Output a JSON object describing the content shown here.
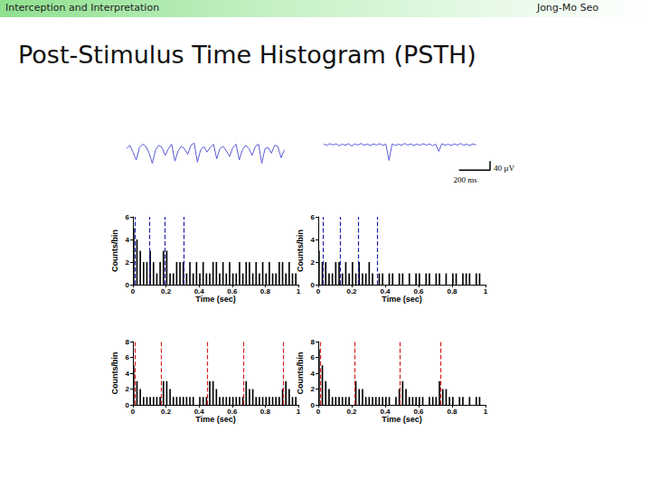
{
  "header": {
    "left": "Interception and Interpretation",
    "right": "Jong-Mo Seo"
  },
  "title": "Post-Stimulus Time Histogram (PSTH)",
  "chart_data": [
    {
      "type": "line",
      "color": "#5b5bd6",
      "tick_labels": false,
      "xlim": [
        0,
        1000
      ],
      "ylim": [
        -120,
        120
      ],
      "x": [
        0,
        20,
        40,
        60,
        80,
        100,
        120,
        140,
        160,
        180,
        200,
        220,
        240,
        260,
        280,
        300,
        320,
        340,
        360,
        380,
        400,
        420,
        440,
        460,
        480,
        500,
        520,
        540,
        560,
        580,
        600,
        620,
        640,
        660,
        680,
        700,
        720,
        740,
        760,
        780,
        800,
        820,
        840,
        860,
        880,
        900,
        920,
        940,
        960,
        980
      ],
      "values": [
        10,
        25,
        -5,
        -40,
        15,
        30,
        20,
        -10,
        -55,
        5,
        25,
        15,
        -20,
        10,
        30,
        -45,
        0,
        20,
        10,
        -15,
        25,
        35,
        -50,
        5,
        20,
        -5,
        15,
        30,
        -35,
        10,
        20,
        0,
        -25,
        15,
        30,
        -40,
        5,
        25,
        10,
        -20,
        20,
        30,
        -55,
        10,
        15,
        -10,
        25,
        20,
        -30,
        5
      ]
    },
    {
      "type": "line",
      "color": "#5b5bd6",
      "tick_labels": false,
      "xlim": [
        0,
        1070
      ],
      "ylim": [
        -120,
        120
      ],
      "x": [
        0,
        20,
        40,
        60,
        80,
        100,
        120,
        140,
        160,
        180,
        200,
        220,
        240,
        260,
        280,
        300,
        320,
        340,
        360,
        380,
        400,
        420,
        440,
        460,
        480,
        500,
        520,
        540,
        560,
        580,
        600,
        620,
        640,
        660,
        680,
        700,
        720,
        740,
        760,
        780,
        800,
        820,
        840,
        860,
        880,
        900,
        920,
        940,
        960,
        980
      ],
      "values": [
        2,
        -3,
        4,
        -2,
        3,
        -5,
        2,
        -3,
        4,
        -6,
        3,
        -2,
        5,
        -3,
        2,
        -4,
        3,
        -2,
        4,
        -3,
        2,
        -70,
        3,
        -4,
        2,
        -3,
        5,
        -2,
        3,
        -4,
        2,
        -3,
        4,
        -2,
        3,
        -5,
        2,
        -30,
        4,
        -3,
        2,
        -4,
        3,
        -2,
        5,
        -3,
        2,
        -4,
        3,
        -2
      ],
      "scale_bar": {
        "x": 200,
        "x_label": "200 ms",
        "y": 40,
        "y_label": "40 µV"
      }
    },
    {
      "type": "histogram",
      "x_label": "Time (sec)",
      "y_label": "Counts/bin",
      "xlim": [
        0,
        1
      ],
      "xticks": [
        0,
        0.2,
        0.4,
        0.6,
        0.8,
        1
      ],
      "ylim": [
        0,
        6
      ],
      "yticks": [
        0,
        2,
        4,
        6
      ],
      "bins": [
        0,
        0.02,
        0.04,
        0.06,
        0.08,
        0.1,
        0.12,
        0.14,
        0.16,
        0.18,
        0.2,
        0.22,
        0.24,
        0.26,
        0.28,
        0.3,
        0.32,
        0.34,
        0.36,
        0.38,
        0.4,
        0.42,
        0.44,
        0.46,
        0.48,
        0.5,
        0.52,
        0.54,
        0.56,
        0.58,
        0.6,
        0.62,
        0.64,
        0.66,
        0.68,
        0.7,
        0.72,
        0.74,
        0.76,
        0.78,
        0.8,
        0.82,
        0.84,
        0.86,
        0.88,
        0.9,
        0.92,
        0.94,
        0.96,
        0.98,
        1
      ],
      "series": [
        {
          "type": "bar",
          "color": "#000000",
          "values": [
            5,
            4,
            3,
            2,
            2,
            3,
            2,
            1,
            2,
            3,
            3,
            1,
            1,
            2,
            2,
            2,
            1,
            2,
            1,
            2,
            1,
            2,
            1,
            1,
            2,
            2,
            1,
            2,
            1,
            2,
            1,
            1,
            2,
            1,
            2,
            2,
            1,
            2,
            1,
            2,
            1,
            2,
            1,
            1,
            2,
            2,
            1,
            2,
            1,
            1
          ]
        },
        {
          "type": "vline",
          "color": "#1f1fa8",
          "line_style": "dashed",
          "x": [
            0.005,
            0.1,
            0.19,
            0.31
          ]
        }
      ]
    },
    {
      "type": "histogram",
      "x_label": "Time (sec)",
      "y_label": "Counts/bin",
      "xlim": [
        0,
        1
      ],
      "xticks": [
        0,
        0.2,
        0.4,
        0.6,
        0.8,
        1
      ],
      "ylim": [
        0,
        6
      ],
      "yticks": [
        0,
        2,
        4,
        6
      ],
      "bins": [
        0,
        0.02,
        0.04,
        0.06,
        0.08,
        0.1,
        0.12,
        0.14,
        0.16,
        0.18,
        0.2,
        0.22,
        0.24,
        0.26,
        0.28,
        0.3,
        0.32,
        0.34,
        0.36,
        0.38,
        0.4,
        0.42,
        0.44,
        0.46,
        0.48,
        0.5,
        0.52,
        0.54,
        0.56,
        0.58,
        0.6,
        0.62,
        0.64,
        0.66,
        0.68,
        0.7,
        0.72,
        0.74,
        0.76,
        0.78,
        0.8,
        0.82,
        0.84,
        0.86,
        0.88,
        0.9,
        0.92,
        0.94,
        0.96,
        0.98,
        1
      ],
      "series": [
        {
          "type": "bar",
          "color": "#000000",
          "values": [
            3,
            2,
            2,
            1,
            1,
            2,
            2,
            1,
            2,
            1,
            2,
            1,
            2,
            1,
            1,
            2,
            1,
            0,
            1,
            1,
            0,
            1,
            1,
            0,
            1,
            1,
            0,
            1,
            0,
            1,
            1,
            0,
            1,
            1,
            0,
            1,
            1,
            0,
            1,
            0,
            1,
            1,
            0,
            1,
            1,
            1,
            0,
            1,
            1,
            0
          ]
        },
        {
          "type": "vline",
          "color": "#1f1fa8",
          "line_style": "dashed",
          "x": [
            0.03,
            0.13,
            0.24,
            0.35
          ]
        }
      ]
    },
    {
      "type": "histogram",
      "x_label": "Time (sec)",
      "y_label": "Counts/bin",
      "xlim": [
        0,
        1
      ],
      "xticks": [
        0,
        0.2,
        0.4,
        0.6,
        0.8,
        1
      ],
      "ylim": [
        0,
        8
      ],
      "yticks": [
        0,
        2,
        4,
        6,
        8
      ],
      "bins": [
        0,
        0.02,
        0.04,
        0.06,
        0.08,
        0.1,
        0.12,
        0.14,
        0.16,
        0.18,
        0.2,
        0.22,
        0.24,
        0.26,
        0.28,
        0.3,
        0.32,
        0.34,
        0.36,
        0.38,
        0.4,
        0.42,
        0.44,
        0.46,
        0.48,
        0.5,
        0.52,
        0.54,
        0.56,
        0.58,
        0.6,
        0.62,
        0.64,
        0.66,
        0.68,
        0.7,
        0.72,
        0.74,
        0.76,
        0.78,
        0.8,
        0.82,
        0.84,
        0.86,
        0.88,
        0.9,
        0.92,
        0.94,
        0.96,
        0.98,
        1
      ],
      "series": [
        {
          "type": "bar",
          "color": "#000000",
          "values": [
            5,
            3,
            2,
            1,
            1,
            1,
            1,
            1,
            1,
            3,
            3,
            2,
            1,
            1,
            1,
            1,
            1,
            1,
            1,
            0,
            1,
            1,
            1,
            3,
            3,
            2,
            1,
            1,
            1,
            1,
            1,
            1,
            1,
            1,
            3,
            2,
            2,
            1,
            1,
            1,
            1,
            1,
            1,
            1,
            1,
            2,
            3,
            2,
            1,
            1
          ]
        },
        {
          "type": "vline",
          "color": "#d42020",
          "line_style": "dashed",
          "x": [
            0.005,
            0.175,
            0.45,
            0.665,
            0.905
          ]
        }
      ]
    },
    {
      "type": "histogram",
      "x_label": "Time (sec)",
      "y_label": "Counts/bin",
      "xlim": [
        0,
        1
      ],
      "xticks": [
        0,
        0.2,
        0.4,
        0.6,
        0.8,
        1
      ],
      "ylim": [
        0,
        8
      ],
      "yticks": [
        0,
        2,
        4,
        6,
        8
      ],
      "bins": [
        0,
        0.02,
        0.04,
        0.06,
        0.08,
        0.1,
        0.12,
        0.14,
        0.16,
        0.18,
        0.2,
        0.22,
        0.24,
        0.26,
        0.28,
        0.3,
        0.32,
        0.34,
        0.36,
        0.38,
        0.4,
        0.42,
        0.44,
        0.46,
        0.48,
        0.5,
        0.52,
        0.54,
        0.56,
        0.58,
        0.6,
        0.62,
        0.64,
        0.66,
        0.68,
        0.7,
        0.72,
        0.74,
        0.76,
        0.78,
        0.8,
        0.82,
        0.84,
        0.86,
        0.88,
        0.9,
        0.92,
        0.94,
        0.96,
        0.98,
        1
      ],
      "series": [
        {
          "type": "bar",
          "color": "#000000",
          "values": [
            7,
            5,
            3,
            2,
            1,
            1,
            1,
            1,
            1,
            1,
            0,
            3,
            2,
            2,
            1,
            1,
            1,
            1,
            1,
            1,
            1,
            1,
            0,
            1,
            2,
            3,
            2,
            1,
            1,
            1,
            1,
            1,
            0,
            1,
            1,
            1,
            3,
            2,
            2,
            1,
            1,
            0,
            1,
            1,
            0,
            1,
            0,
            1,
            1,
            0
          ]
        },
        {
          "type": "vline",
          "color": "#d42020",
          "line_style": "dashed",
          "x": [
            0.005,
            0.22,
            0.49,
            0.73
          ]
        }
      ]
    }
  ]
}
